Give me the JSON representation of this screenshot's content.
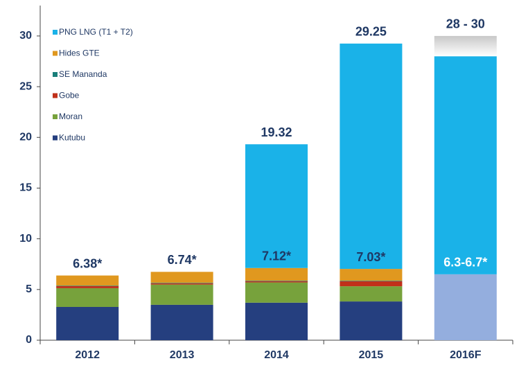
{
  "chart_data": {
    "type": "stacked_bar",
    "categories": [
      "2012",
      "2013",
      "2014",
      "2015",
      "2016F"
    ],
    "series": [
      {
        "name": "Kutubu",
        "color": "#253f7f",
        "values": [
          3.28,
          3.49,
          3.7,
          3.82,
          null
        ]
      },
      {
        "name": "Moran",
        "color": "#77a23c",
        "values": [
          1.85,
          2.0,
          2.0,
          1.5,
          null
        ]
      },
      {
        "name": "Gobe",
        "color": "#c0301a",
        "values": [
          0.2,
          0.12,
          0.12,
          0.5,
          null
        ]
      },
      {
        "name": "SE Mananda",
        "color": "#1a7f7a",
        "values": [
          0.05,
          0.05,
          0.05,
          0.05,
          null
        ]
      },
      {
        "name": "Hides GTE",
        "color": "#e0981f",
        "values": [
          1.0,
          1.08,
          1.25,
          1.16,
          null
        ]
      },
      {
        "name": "PNG LNG (T1 + T2)",
        "color": "#1ab2e8",
        "values": [
          null,
          null,
          12.2,
          22.22,
          21.5
        ]
      }
    ],
    "forecast": {
      "category_index": 4,
      "domestic": 6.5,
      "domestic_color": "#94aede",
      "range": [
        28,
        30
      ],
      "range_color": "#c8c8c8"
    },
    "totals": {
      "values": [
        6.38,
        6.74,
        19.32,
        29.25,
        null
      ],
      "value_labels": [
        "6.38*",
        "6.74*",
        "19.32",
        "29.25",
        "28 - 30"
      ]
    },
    "domestic_totals": {
      "values": [
        null,
        null,
        7.12,
        7.03,
        null
      ],
      "value_labels": [
        null,
        null,
        "7.12*",
        "7.03*",
        "6.3-6.7*"
      ]
    },
    "ylim": [
      0,
      33
    ],
    "yticks": [
      0,
      5,
      10,
      15,
      20,
      25,
      30
    ],
    "grid": false,
    "legend": "top-left"
  }
}
